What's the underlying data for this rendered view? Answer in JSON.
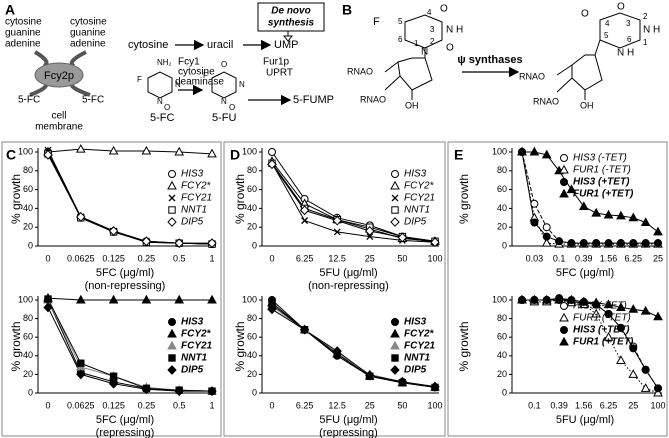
{
  "diagram_a": {
    "label": "A",
    "left_bases": [
      "cytosine",
      "guanine",
      "adenine"
    ],
    "right_bases": [
      "cytosine",
      "guanine",
      "adenine"
    ],
    "transporter": "Fcy2p",
    "drug_left": "5-FC",
    "drug_right": "5-FC",
    "membrane": [
      "cell",
      "membrane"
    ],
    "cytosine": "cytosine",
    "uracil": "uracil",
    "de_novo": [
      "De novo",
      "synthesis"
    ],
    "ump": "UMP",
    "enzyme1": [
      "Fcy1",
      "cytosine",
      "deaminase"
    ],
    "enzyme2": [
      "Fur1p",
      "UPRT"
    ],
    "fc_label": "5-FC",
    "fu_label": "5-FU",
    "fump": "5-FUMP",
    "atoms": [
      "NH₂",
      "F",
      "N",
      "N",
      "O",
      "F",
      "O",
      "N",
      "N",
      "O"
    ]
  },
  "diagram_b": {
    "label": "B",
    "enzyme": "ψ synthases",
    "atoms": [
      "F",
      "O",
      "O",
      "N",
      "N",
      "H",
      "RNAO",
      "RNAO",
      "OH",
      "O",
      "O",
      "N",
      "N",
      "H",
      "H",
      "RNAO",
      "RNAO",
      "OH"
    ],
    "numbers": [
      "1",
      "2",
      "3",
      "4",
      "5",
      "6",
      "1",
      "2",
      "3",
      "4",
      "5",
      "6"
    ]
  },
  "chart_data": [
    {
      "type": "line",
      "panel": "C",
      "ylabel": "% growth",
      "xlabel": "5FC (μg/ml)",
      "subtitle": "(non-repressing)",
      "categories": [
        "0",
        "0.0625",
        "0.125",
        "0.25",
        "0.5",
        "1"
      ],
      "ylim": [
        0,
        100
      ],
      "yticks": [
        0,
        20,
        40,
        60,
        80,
        100
      ],
      "series": [
        {
          "name": "HIS3",
          "color": "#000",
          "marker": "circle",
          "fill": "#fff",
          "line_style": "solid",
          "values": [
            100,
            30,
            15,
            5,
            3,
            2
          ]
        },
        {
          "name": "FCY2*",
          "color": "#000",
          "marker": "triangle",
          "fill": "#fff",
          "line_style": "solid",
          "values": [
            100,
            103,
            101,
            101,
            100,
            98
          ]
        },
        {
          "name": "FCY21",
          "color": "#000",
          "marker": "x",
          "fill": "#fff",
          "line_style": "solid",
          "values": [
            102,
            31,
            16,
            4,
            3,
            2
          ]
        },
        {
          "name": "NNT1",
          "color": "#000",
          "marker": "square",
          "fill": "#fff",
          "line_style": "solid",
          "values": [
            98,
            30,
            15,
            4,
            3,
            2
          ]
        },
        {
          "name": "DIP5",
          "color": "#000",
          "marker": "diamond",
          "fill": "#fff",
          "line_style": "solid",
          "values": [
            97,
            31,
            16,
            5,
            3,
            3
          ]
        }
      ]
    },
    {
      "type": "line",
      "ylabel": "% growth",
      "xlabel": "5FC (μg/ml)",
      "subtitle": "(repressing)",
      "categories": [
        "0",
        "0.0625",
        "0.125",
        "0.25",
        "0.5",
        "1"
      ],
      "ylim": [
        0,
        100
      ],
      "yticks": [
        0,
        20,
        40,
        60,
        80,
        100
      ],
      "series": [
        {
          "name": "HIS3",
          "color": "#000",
          "marker": "circle",
          "fill": "#000",
          "line_style": "solid",
          "values": [
            100,
            22,
            12,
            5,
            3,
            2
          ]
        },
        {
          "name": "FCY2*",
          "color": "#000",
          "marker": "triangle",
          "fill": "#000",
          "line_style": "solid",
          "values": [
            102,
            100,
            100,
            100,
            100,
            100
          ]
        },
        {
          "name": "FCY21",
          "color": "#888",
          "marker": "triangle",
          "fill": "#888",
          "line_style": "solid",
          "values": [
            100,
            28,
            18,
            6,
            3,
            2
          ]
        },
        {
          "name": "NNT1",
          "color": "#000",
          "marker": "square",
          "fill": "#000",
          "line_style": "solid",
          "values": [
            101,
            32,
            18,
            5,
            3,
            2
          ]
        },
        {
          "name": "DIP5",
          "color": "#000",
          "marker": "diamond",
          "fill": "#000",
          "line_style": "solid",
          "values": [
            92,
            20,
            10,
            4,
            2,
            2
          ]
        }
      ]
    },
    {
      "type": "line",
      "panel": "D",
      "ylabel": "% growth",
      "xlabel": "5FU (μg/ml)",
      "subtitle": "(non-repressing)",
      "categories": [
        "0",
        "6.25",
        "12.5",
        "25",
        "50",
        "100"
      ],
      "ylim": [
        0,
        100
      ],
      "yticks": [
        0,
        20,
        40,
        60,
        80,
        100
      ],
      "series": [
        {
          "name": "HIS3",
          "color": "#000",
          "marker": "circle",
          "fill": "#fff",
          "line_style": "solid",
          "values": [
            100,
            50,
            30,
            22,
            10,
            5
          ]
        },
        {
          "name": "FCY2*",
          "color": "#000",
          "marker": "triangle",
          "fill": "#fff",
          "line_style": "solid",
          "values": [
            90,
            45,
            28,
            18,
            8,
            5
          ]
        },
        {
          "name": "FCY21",
          "color": "#000",
          "marker": "x",
          "fill": "#fff",
          "line_style": "solid",
          "values": [
            88,
            27,
            15,
            10,
            6,
            4
          ]
        },
        {
          "name": "NNT1",
          "color": "#000",
          "marker": "square",
          "fill": "#fff",
          "line_style": "solid",
          "values": [
            88,
            40,
            28,
            20,
            10,
            5
          ]
        },
        {
          "name": "DIP5",
          "color": "#000",
          "marker": "diamond",
          "fill": "#fff",
          "line_style": "solid",
          "values": [
            87,
            38,
            27,
            16,
            9,
            4
          ]
        }
      ]
    },
    {
      "type": "line",
      "ylabel": "% growth",
      "xlabel": "5FU (μg/ml)",
      "subtitle": "(repressing)",
      "categories": [
        "0",
        "6.25",
        "12.5",
        "25",
        "50",
        "100"
      ],
      "ylim": [
        0,
        100
      ],
      "yticks": [
        0,
        20,
        40,
        60,
        80,
        100
      ],
      "series": [
        {
          "name": "HIS3",
          "color": "#000",
          "marker": "circle",
          "fill": "#000",
          "line_style": "solid",
          "values": [
            100,
            68,
            40,
            18,
            12,
            6
          ]
        },
        {
          "name": "FCY2*",
          "color": "#000",
          "marker": "triangle",
          "fill": "#000",
          "line_style": "solid",
          "values": [
            97,
            68,
            42,
            18,
            11,
            6
          ]
        },
        {
          "name": "FCY21",
          "color": "#888",
          "marker": "triangle",
          "fill": "#888",
          "line_style": "solid",
          "values": [
            93,
            68,
            43,
            20,
            12,
            6
          ]
        },
        {
          "name": "NNT1",
          "color": "#000",
          "marker": "square",
          "fill": "#000",
          "line_style": "solid",
          "values": [
            95,
            68,
            42,
            18,
            11,
            6
          ]
        },
        {
          "name": "DIP5",
          "color": "#000",
          "marker": "diamond",
          "fill": "#000",
          "line_style": "solid",
          "values": [
            90,
            68,
            45,
            19,
            12,
            7
          ]
        }
      ]
    },
    {
      "type": "line",
      "panel": "E",
      "ylabel": "% growth",
      "xlabel": "5FC (μg/ml)",
      "categories": [
        null,
        "0.03",
        null,
        "0.1",
        null,
        "0.39",
        null,
        "1.56",
        null,
        "6.25",
        null,
        "25"
      ],
      "ylim": [
        0,
        100
      ],
      "yticks": [
        0,
        20,
        40,
        60,
        80,
        100
      ],
      "series": [
        {
          "name": "HIS3 (-TET)",
          "color": "#000",
          "marker": "circle",
          "fill": "#fff",
          "line_style": "dashed",
          "values": [
            100,
            45,
            20,
            5,
            3,
            3,
            3,
            3,
            3,
            3,
            3,
            3
          ]
        },
        {
          "name": "FUR1 (-TET)",
          "color": "#000",
          "marker": "triangle",
          "fill": "#fff",
          "line_style": "dotted",
          "values": [
            100,
            30,
            3,
            2,
            2,
            2,
            2,
            2,
            2,
            2,
            2,
            2
          ]
        },
        {
          "name": "HIS3 (+TET)",
          "color": "#000",
          "marker": "circle",
          "fill": "#000",
          "line_style": "solid",
          "values": [
            100,
            25,
            10,
            5,
            3,
            3,
            3,
            3,
            3,
            3,
            3,
            3
          ]
        },
        {
          "name": "FUR1 (+TET)",
          "color": "#000",
          "marker": "triangle",
          "fill": "#000",
          "line_style": "solid",
          "values": [
            100,
            100,
            97,
            80,
            60,
            42,
            35,
            33,
            32,
            30,
            25,
            15
          ]
        }
      ]
    },
    {
      "type": "line",
      "ylabel": "% growth",
      "xlabel": "5FU (μg/ml)",
      "categories": [
        null,
        "0.1",
        null,
        "0.39",
        null,
        "1.56",
        null,
        "6.25",
        null,
        "25",
        null,
        "100"
      ],
      "ylim": [
        0,
        100
      ],
      "yticks": [
        0,
        20,
        40,
        60,
        80,
        100
      ],
      "series": [
        {
          "name": "HIS3 (-TET)",
          "color": "#000",
          "marker": "circle",
          "fill": "#fff",
          "line_style": "dashed",
          "values": [
            100,
            100,
            100,
            100,
            98,
            97,
            95,
            85,
            70,
            50,
            25,
            5
          ]
        },
        {
          "name": "FUR1 (-TET)",
          "color": "#000",
          "marker": "triangle",
          "fill": "#fff",
          "line_style": "dotted",
          "values": [
            100,
            98,
            98,
            100,
            97,
            95,
            85,
            60,
            35,
            20,
            5,
            0
          ]
        },
        {
          "name": "HIS3 (+TET)",
          "color": "#000",
          "marker": "circle",
          "fill": "#000",
          "line_style": "solid",
          "values": [
            100,
            100,
            100,
            102,
            100,
            98,
            95,
            85,
            70,
            48,
            25,
            5
          ]
        },
        {
          "name": "FUR1 (+TET)",
          "color": "#000",
          "marker": "triangle",
          "fill": "#000",
          "line_style": "solid",
          "values": [
            100,
            100,
            100,
            100,
            100,
            98,
            97,
            95,
            92,
            90,
            88,
            82
          ]
        }
      ]
    }
  ]
}
